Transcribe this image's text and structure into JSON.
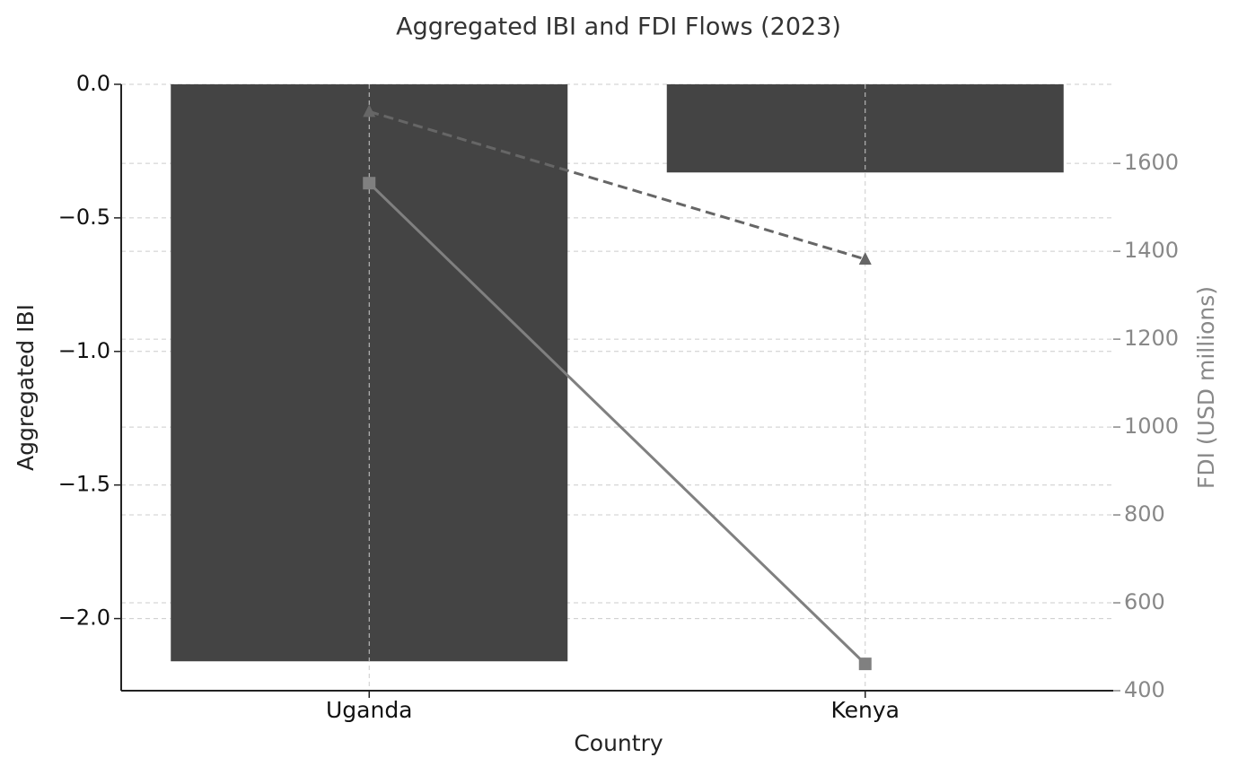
{
  "chart_data": {
    "type": "bar",
    "title": "Aggregated IBI and FDI Flows (2023)",
    "x_label": "Country",
    "y_label": "Aggregated IBI",
    "y2_label": "FDI (USD millions)",
    "categories": [
      "Uganda",
      "Kenya"
    ],
    "ylim": [
      -2.27,
      0
    ],
    "yticks": [
      {
        "value": 0,
        "label": "0.0"
      },
      {
        "value": -0.5,
        "label": "−0.5"
      },
      {
        "value": -1,
        "label": "−1.0"
      },
      {
        "value": -1.5,
        "label": "−1.5"
      },
      {
        "value": -2,
        "label": "−2.0"
      }
    ],
    "y2lim": [
      400,
      1780
    ],
    "y2ticks": [
      400,
      600,
      800,
      1000,
      1200,
      1400,
      1600
    ],
    "grid": true,
    "series": [
      {
        "type": "bar",
        "color": "#444444",
        "values": [
          -2.16,
          -0.33
        ]
      },
      {
        "type": "line",
        "axis": "y2",
        "color": "#808080",
        "marker": "square",
        "dashed": false,
        "values": [
          1555,
          461
        ]
      },
      {
        "type": "line",
        "axis": "y2",
        "color": "#666666",
        "marker": "triangle",
        "dashed": true,
        "values": [
          1718,
          1382
        ]
      }
    ]
  }
}
